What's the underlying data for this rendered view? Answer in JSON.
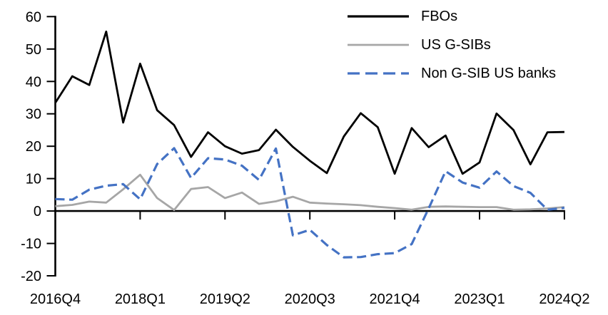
{
  "chart_data": {
    "type": "line",
    "x_labels": [
      "2016Q4",
      "2017Q1",
      "2017Q2",
      "2017Q3",
      "2017Q4",
      "2018Q1",
      "2018Q2",
      "2018Q3",
      "2018Q4",
      "2019Q1",
      "2019Q2",
      "2019Q3",
      "2019Q4",
      "2020Q1",
      "2020Q2",
      "2020Q3",
      "2020Q4",
      "2021Q1",
      "2021Q2",
      "2021Q3",
      "2021Q4",
      "2022Q1",
      "2022Q2",
      "2022Q3",
      "2022Q4",
      "2023Q1",
      "2023Q2",
      "2023Q3",
      "2023Q4",
      "2024Q1",
      "2024Q2"
    ],
    "x_axis_tick_labels": [
      "2016Q4",
      "2018Q1",
      "2019Q2",
      "2020Q3",
      "2021Q4",
      "2023Q1",
      "2024Q2"
    ],
    "x_axis_tick_indices": [
      0,
      5,
      10,
      15,
      20,
      25,
      30
    ],
    "y_ticks": [
      60,
      50,
      40,
      30,
      20,
      10,
      0,
      -10,
      -20
    ],
    "ylim": [
      -20,
      60
    ],
    "grid": "off",
    "legend_position": "top-right",
    "axis_color": "#000000",
    "series": [
      {
        "name": "FBOs",
        "color": "#000000",
        "style": "solid",
        "values": [
          33.4,
          41.6,
          38.9,
          55.4,
          27.3,
          45.5,
          31.1,
          26.5,
          16.7,
          24.3,
          20.0,
          17.7,
          18.8,
          25.1,
          19.8,
          15.5,
          11.7,
          23.0,
          30.2,
          25.9,
          11.5,
          25.6,
          19.7,
          23.3,
          11.5,
          15.0,
          30.1,
          25.0,
          14.4,
          24.3,
          24.4
        ]
      },
      {
        "name": "US G-SIBs",
        "color": "#A6A6A6",
        "style": "solid",
        "values": [
          1.5,
          1.9,
          2.9,
          2.6,
          6.7,
          11.2,
          4.0,
          0.3,
          6.8,
          7.4,
          4.0,
          5.7,
          2.2,
          3.0,
          4.4,
          2.6,
          2.3,
          2.1,
          1.8,
          1.3,
          0.9,
          0.4,
          1.3,
          1.4,
          1.3,
          1.2,
          1.2,
          0.4,
          0.5,
          0.8,
          1.2
        ]
      },
      {
        "name": "Non G-SIB US banks",
        "color": "#4472C4",
        "style": "dashed",
        "values": [
          3.7,
          3.5,
          6.6,
          7.8,
          8.3,
          3.6,
          14.5,
          19.4,
          10.2,
          16.3,
          15.9,
          14.0,
          9.6,
          19.3,
          -7.5,
          -5.8,
          -10.5,
          -14.3,
          -14.2,
          -13.3,
          -13.0,
          -10.2,
          0.8,
          12.3,
          8.8,
          7.2,
          12.2,
          7.7,
          5.6,
          0.4,
          1.0
        ]
      }
    ]
  }
}
